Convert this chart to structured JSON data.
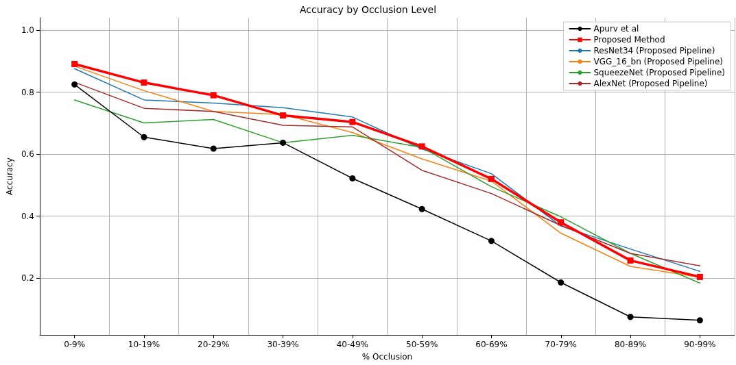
{
  "chart_data": {
    "type": "line",
    "title": "Accuracy by Occlusion Level",
    "xlabel": "% Occlusion",
    "ylabel": "Accuracy",
    "categories": [
      "0-9%",
      "10-19%",
      "20-29%",
      "30-39%",
      "40-49%",
      "50-59%",
      "60-69%",
      "70-79%",
      "80-89%",
      "90-99%"
    ],
    "ylim": [
      0.017,
      1.04
    ],
    "yticks": [
      0.2,
      0.4,
      0.6,
      0.8,
      {
        "value": 1,
        "label": "1.0"
      }
    ],
    "grid": true,
    "legend": "top right",
    "line_style": "solid",
    "series": [
      {
        "name": "Apurv et al",
        "color": "#000000",
        "marker": "circle",
        "values": [
          0.825,
          0.655,
          0.618,
          0.637,
          0.522,
          0.423,
          0.32,
          0.186,
          0.075,
          0.064
        ]
      },
      {
        "name": "Proposed Method",
        "color": "#ff0000",
        "marker": "square",
        "values": [
          0.891,
          0.831,
          0.79,
          0.725,
          0.704,
          0.625,
          0.52,
          0.38,
          0.257,
          0.204
        ]
      },
      {
        "name": "ResNet34 (Proposed Pipeline)",
        "color": "#1f77b4",
        "marker": "none",
        "values": [
          0.876,
          0.775,
          0.765,
          0.75,
          0.72,
          0.617,
          0.537,
          0.368,
          0.294,
          0.222
        ]
      },
      {
        "name": "VGG_16_bn (Proposed Pipeline)",
        "color": "#ff7f0e",
        "marker": "none",
        "values": [
          0.884,
          0.805,
          0.738,
          0.728,
          0.67,
          0.585,
          0.513,
          0.345,
          0.238,
          0.203
        ]
      },
      {
        "name": "SqueezeNet (Proposed Pipeline)",
        "color": "#2ca02c",
        "marker": "none",
        "values": [
          0.775,
          0.701,
          0.712,
          0.637,
          0.661,
          0.622,
          0.495,
          0.398,
          0.28,
          0.184
        ]
      },
      {
        "name": "AlexNet (Proposed Pipeline)",
        "color": "#a52a2a",
        "marker": "none",
        "values": [
          0.832,
          0.748,
          0.738,
          0.693,
          0.688,
          0.548,
          0.473,
          0.37,
          0.28,
          0.24
        ]
      }
    ]
  }
}
